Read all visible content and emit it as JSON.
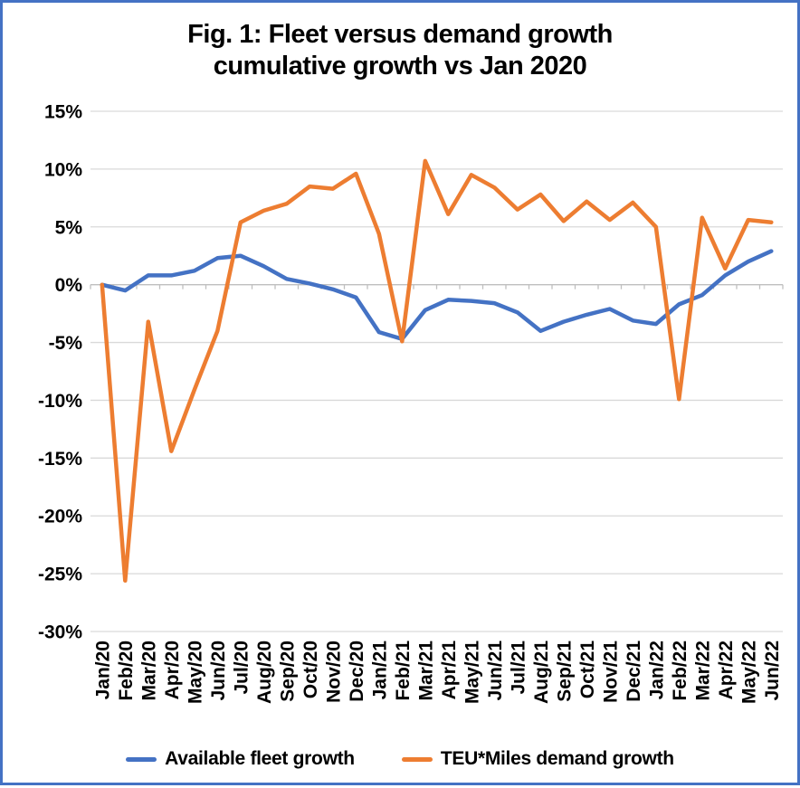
{
  "title": {
    "line1": "Fig. 1: Fleet versus demand growth",
    "line2": "cumulative growth vs Jan 2020"
  },
  "y_axis": {
    "tick_labels": [
      "15%",
      "10%",
      "5%",
      "0%",
      "-5%",
      "-10%",
      "-15%",
      "-20%",
      "-25%",
      "-30%"
    ]
  },
  "chart_data": {
    "type": "line",
    "title": "Fig. 1: Fleet versus demand growth cumulative growth vs Jan 2020",
    "x": [
      "Jan/20",
      "Feb/20",
      "Mar/20",
      "Apr/20",
      "May/20",
      "Jun/20",
      "Jul/20",
      "Aug/20",
      "Sep/20",
      "Oct/20",
      "Nov/20",
      "Dec/20",
      "Jan/21",
      "Feb/21",
      "Mar/21",
      "Apr/21",
      "May/21",
      "Jun/21",
      "Jul/21",
      "Aug/21",
      "Sep/21",
      "Oct/21",
      "Nov/21",
      "Dec/21",
      "Jan/22",
      "Feb/22",
      "Mar/22",
      "Apr/22",
      "May/22",
      "Jun/22"
    ],
    "unit": "%",
    "ylim": [
      -30,
      15
    ],
    "ytick_step": 5,
    "grid": true,
    "legend_position": "bottom",
    "series": [
      {
        "name": "Available fleet growth",
        "color": "#4472C4",
        "values": [
          0,
          -0.5,
          0.8,
          0.8,
          1.2,
          2.3,
          2.5,
          1.6,
          0.5,
          0.1,
          -0.4,
          -1.1,
          -4.1,
          -4.7,
          -2.2,
          -1.3,
          -1.4,
          -1.6,
          -2.4,
          -4.0,
          -3.2,
          -2.6,
          -2.1,
          -3.1,
          -3.4,
          -1.7,
          -0.9,
          0.8,
          2.0,
          2.9
        ]
      },
      {
        "name": "TEU*Miles demand growth",
        "color": "#ED7D31",
        "values": [
          0,
          -25.6,
          -3.2,
          -14.4,
          -9.1,
          -4.0,
          5.4,
          6.4,
          7.0,
          8.5,
          8.3,
          9.6,
          4.4,
          -4.9,
          10.7,
          6.1,
          9.5,
          8.4,
          6.5,
          7.8,
          5.5,
          7.2,
          5.6,
          7.1,
          5.0,
          -9.9,
          5.8,
          1.4,
          5.6,
          5.4
        ]
      }
    ]
  },
  "colors": {
    "frame_border": "#4472C4",
    "background": "#FFFFFF",
    "gridline": "#D9D9D9",
    "axis": "#BFBFBF",
    "label_text": "#000000"
  }
}
